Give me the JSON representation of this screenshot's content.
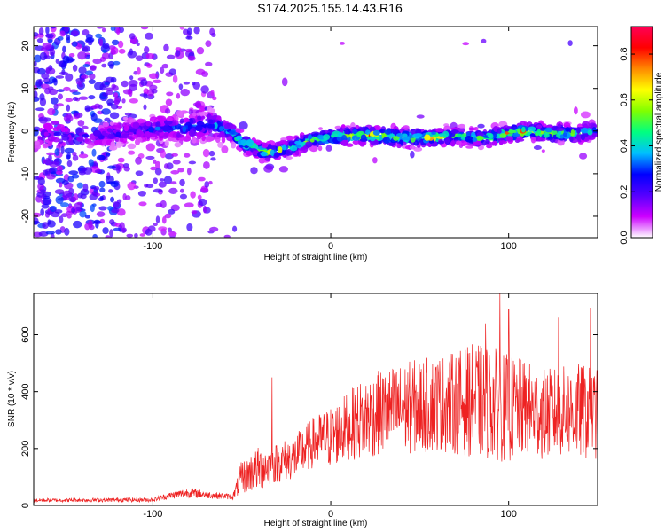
{
  "title": "S174.2025.155.14.43.R16",
  "chart_data": [
    {
      "type": "heatmap",
      "xlabel": "Height of straight line (km)",
      "ylabel": "Frequency (Hz)",
      "xlim": [
        -167,
        150
      ],
      "ylim": [
        -25,
        24.5
      ],
      "x_ticks": [
        -100,
        0,
        100
      ],
      "y_ticks": [
        -20,
        -10,
        0,
        10,
        20
      ],
      "colorbar": {
        "label": "Normalized spectral amplitude",
        "range": [
          0,
          0.92
        ],
        "ticks": [
          "0.0",
          "0.2",
          "0.4",
          "0.6",
          "0.8"
        ],
        "colormap": [
          "#ffffff",
          "#cc00ff",
          "#5500ff",
          "#0000ff",
          "#00bfff",
          "#00ff80",
          "#80ff00",
          "#ffff00",
          "#ff8800",
          "#ff0000",
          "#ff0055"
        ]
      },
      "ridge": {
        "x": [
          -167,
          -130,
          -100,
          -80,
          -65,
          -57,
          -50,
          -42,
          -36,
          -30,
          -20,
          -10,
          0,
          10,
          20,
          30,
          40,
          50,
          60,
          70,
          80,
          90,
          100,
          110,
          120,
          130,
          140,
          150
        ],
        "y": [
          -1,
          -1,
          0.5,
          1,
          1.5,
          0,
          -2.5,
          -4,
          -5,
          -4.5,
          -3.5,
          -2,
          -1.5,
          -1,
          -1,
          -1,
          -1.5,
          -1.5,
          -1.5,
          -1,
          -1.5,
          -1.5,
          -0.5,
          0,
          -0.5,
          -0.5,
          -0.5,
          0.5
        ],
        "amplitude": [
          0.25,
          0.25,
          0.3,
          0.4,
          0.4,
          0.55,
          0.6,
          0.65,
          0.6,
          0.6,
          0.6,
          0.65,
          0.7,
          0.75,
          0.78,
          0.8,
          0.75,
          0.78,
          0.75,
          0.6,
          0.6,
          0.65,
          0.75,
          0.8,
          0.7,
          0.65,
          0.6,
          0.55
        ]
      }
    },
    {
      "type": "line",
      "xlabel": "Height of straight line (km)",
      "ylabel": "SNR (10 * v/v)",
      "xlim": [
        -167,
        150
      ],
      "ylim": [
        0,
        745
      ],
      "x_ticks": [
        -100,
        0,
        100
      ],
      "y_ticks": [
        0,
        200,
        400,
        600
      ],
      "color": "#ee2222",
      "series_envelope": {
        "x": [
          -167,
          -100,
          -90,
          -80,
          -65,
          -55,
          -50,
          -40,
          -30,
          -20,
          -10,
          0,
          10,
          20,
          30,
          40,
          50,
          60,
          70,
          80,
          90,
          100,
          110,
          120,
          130,
          140,
          150
        ],
        "mean": [
          18,
          20,
          35,
          45,
          35,
          30,
          100,
          130,
          150,
          170,
          220,
          240,
          280,
          310,
          330,
          340,
          350,
          360,
          360,
          370,
          360,
          340,
          340,
          320,
          330,
          330,
          320
        ],
        "spread": [
          6,
          8,
          12,
          18,
          12,
          10,
          60,
          80,
          70,
          80,
          90,
          110,
          120,
          150,
          150,
          160,
          170,
          170,
          180,
          200,
          200,
          190,
          170,
          160,
          160,
          170,
          160
        ]
      },
      "peaks": [
        {
          "x": -33,
          "y": 450
        },
        {
          "x": 95,
          "y": 745
        },
        {
          "x": 100,
          "y": 690
        },
        {
          "x": 87,
          "y": 640
        },
        {
          "x": 146,
          "y": 695
        },
        {
          "x": 128,
          "y": 660
        }
      ]
    }
  ]
}
